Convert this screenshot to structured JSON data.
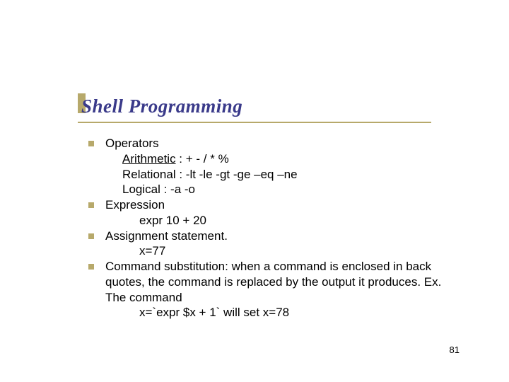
{
  "title": "Shell Programming",
  "colors": {
    "title_color": "#3a3a8a",
    "accent_color": "#b7a96b",
    "text_color": "#000000",
    "background": "#ffffff"
  },
  "typography": {
    "title_fontsize": 27,
    "title_fontfamily": "Georgia, serif",
    "title_style": "italic bold",
    "body_fontsize": 17,
    "body_fontfamily": "Verdana, sans-serif"
  },
  "bullets": [
    {
      "main": "Operators",
      "subs": [
        {
          "label_underlined": true,
          "label": "Arithmetic",
          "sep": " : ",
          "value": "+  -  /  *  %"
        },
        {
          "label_underlined": false,
          "label": "Relational",
          "sep": "   : ",
          "value": "-lt  -le  -gt  -ge –eq –ne"
        },
        {
          "label_underlined": false,
          "label": "Logical",
          "sep": "       : ",
          "value": "-a   -o"
        }
      ]
    },
    {
      "main": "Expression",
      "subs": [
        {
          "indent": 2,
          "text": "expr  10 + 20"
        }
      ]
    },
    {
      "main": "Assignment statement.",
      "subs": [
        {
          "indent": 2,
          "text": "x=77"
        }
      ]
    },
    {
      "main": "Command substitution: when a command is enclosed in back quotes, the command is replaced by the output it produces. Ex. The command",
      "subs": [
        {
          "indent": 2,
          "text": "x=`expr $x + 1`  will set x=78"
        }
      ]
    }
  ],
  "page_number": "81"
}
